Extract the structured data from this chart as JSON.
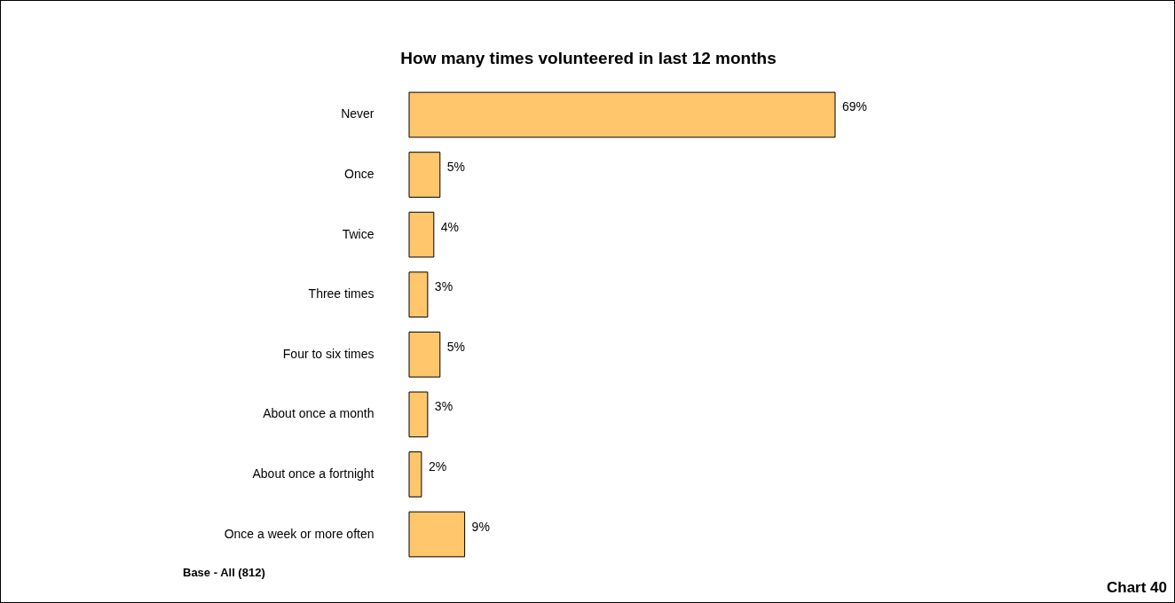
{
  "chart_data": {
    "type": "bar",
    "orientation": "horizontal",
    "title": "How many times volunteered in last 12 months",
    "categories": [
      "Never",
      "Once",
      "Twice",
      "Three times",
      "Four to six times",
      "About once a month",
      "About once a fortnight",
      "Once a week or more often"
    ],
    "values": [
      69,
      5,
      4,
      3,
      5,
      3,
      2,
      9
    ],
    "value_labels": [
      "69%",
      "5%",
      "4%",
      "3%",
      "5%",
      "3%",
      "2%",
      "9%"
    ],
    "color": "#ffc66b",
    "annotations": [
      "Base - All (812)",
      "Chart 40"
    ]
  }
}
